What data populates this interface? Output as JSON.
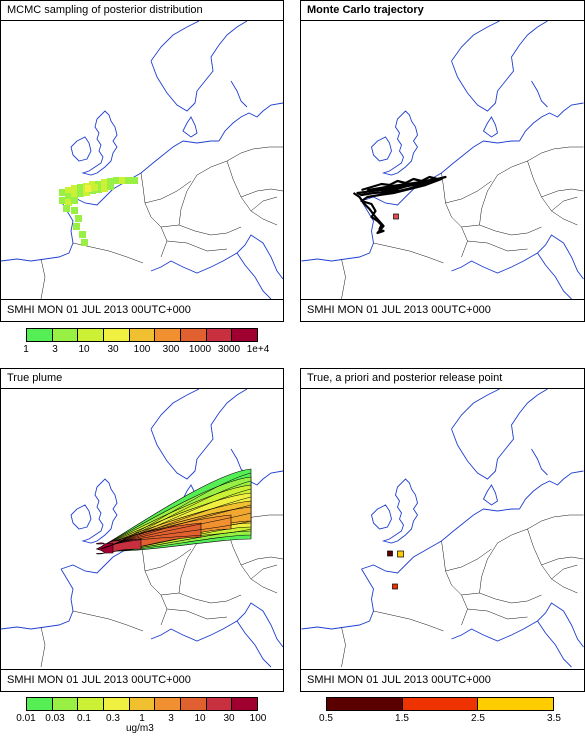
{
  "panels": {
    "mcmc": {
      "title": "MCMC sampling of posterior distribution",
      "footer": "SMHI MON 01 JUL 2013 00UTC+000"
    },
    "trajectory": {
      "title": "Monte Carlo trajectory",
      "footer": "SMHI MON 01 JUL 2013 00UTC+000"
    },
    "plume": {
      "title": "True plume",
      "footer": "SMHI MON 01 JUL 2013 00UTC+000"
    },
    "release": {
      "title": "True, a priori and posterior release point",
      "footer": "SMHI MON 01 JUL 2013 00UTC+000"
    }
  },
  "legends": {
    "mcmc": {
      "ticks": [
        "1",
        "3",
        "10",
        "30",
        "100",
        "300",
        "1000",
        "3000",
        "1e+4"
      ],
      "colors": [
        "#55ee55",
        "#99f044",
        "#ccf033",
        "#f0f040",
        "#f0c030",
        "#f09030",
        "#e06030",
        "#c83040",
        "#a00030"
      ]
    },
    "plume": {
      "ticks": [
        "0.01",
        "0.03",
        "0.1",
        "0.3",
        "1",
        "3",
        "10",
        "30",
        "100"
      ],
      "colors": [
        "#55ee55",
        "#99f044",
        "#ccf033",
        "#f0f040",
        "#f0c030",
        "#f09030",
        "#e06030",
        "#c83040",
        "#a00030"
      ],
      "unit": "ug/m3"
    },
    "release": {
      "ticks": [
        "0.5",
        "1.5",
        "2.5",
        "3.5"
      ],
      "colors": [
        "#5a0000",
        "#ee3300",
        "#ffcc00"
      ]
    }
  },
  "map_colors": {
    "coast": "#1f3fd0",
    "border": "#111111",
    "trajectory": "#000000",
    "marker": "#e05050"
  }
}
